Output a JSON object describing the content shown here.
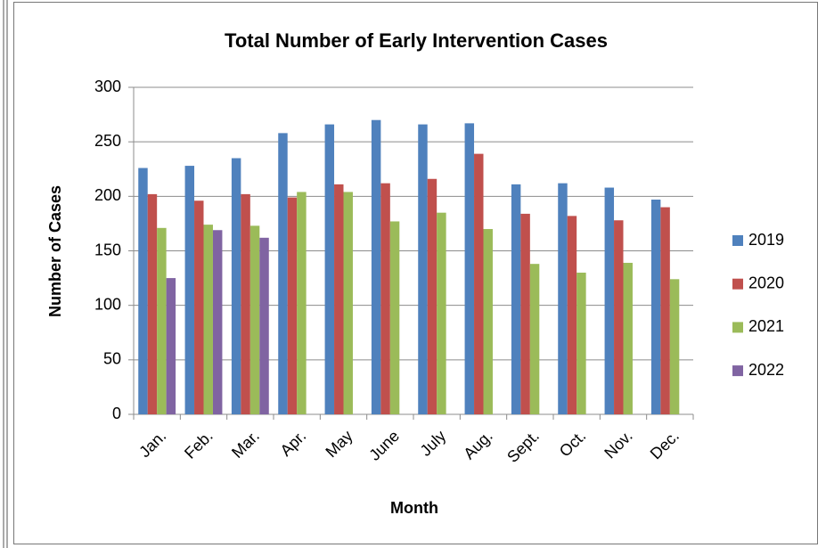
{
  "chart_data": {
    "type": "bar",
    "title": "Total Number of Early Intervention Cases",
    "x_label": "Month",
    "y_label": "Number of Cases",
    "categories": [
      "Jan.",
      "Feb.",
      "Mar.",
      "Apr.",
      "May",
      "June",
      "July",
      "Aug.",
      "Sept.",
      "Oct.",
      "Nov.",
      "Dec."
    ],
    "series": [
      {
        "name": "2019",
        "color": "#4f81bd",
        "values": [
          226,
          228,
          235,
          258,
          266,
          270,
          266,
          267,
          211,
          212,
          208,
          197
        ]
      },
      {
        "name": "2020",
        "color": "#c0504d",
        "values": [
          202,
          196,
          202,
          199,
          211,
          212,
          216,
          239,
          184,
          182,
          178,
          190
        ]
      },
      {
        "name": "2021",
        "color": "#9bbb59",
        "values": [
          171,
          174,
          173,
          204,
          204,
          177,
          185,
          170,
          138,
          130,
          139,
          124
        ]
      },
      {
        "name": "2022",
        "color": "#8064a2",
        "values": [
          125,
          169,
          162,
          null,
          null,
          null,
          null,
          null,
          null,
          null,
          null,
          null
        ]
      }
    ],
    "ylim": [
      0,
      300
    ],
    "yticks": [
      0,
      50,
      100,
      150,
      200,
      250,
      300
    ],
    "grid": true,
    "legend": "right"
  }
}
